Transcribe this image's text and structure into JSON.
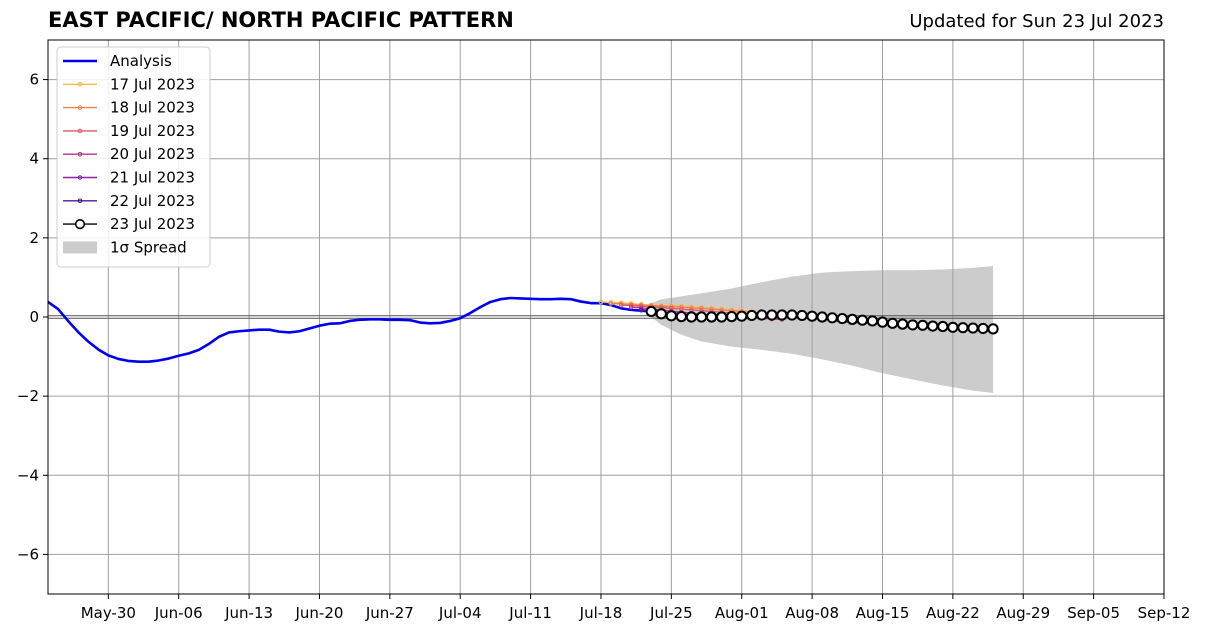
{
  "chart_data": {
    "type": "line",
    "title": "EAST PACIFIC/ NORTH PACIFIC PATTERN",
    "subtitle": "Updated for Sun 23 Jul 2023",
    "xlabel": "",
    "ylabel": "",
    "xlim": [
      "2023-05-24",
      "2023-09-12"
    ],
    "ylim": [
      -7,
      7
    ],
    "x_ticks": [
      "2023-05-30",
      "2023-06-06",
      "2023-06-13",
      "2023-06-20",
      "2023-06-27",
      "2023-07-04",
      "2023-07-11",
      "2023-07-18",
      "2023-07-25",
      "2023-08-01",
      "2023-08-08",
      "2023-08-15",
      "2023-08-22",
      "2023-08-29",
      "2023-09-05",
      "2023-09-12"
    ],
    "x_tick_labels": [
      "May-30",
      "Jun-06",
      "Jun-13",
      "Jun-20",
      "Jun-27",
      "Jul-04",
      "Jul-11",
      "Jul-18",
      "Jul-25",
      "Aug-01",
      "Aug-08",
      "Aug-15",
      "Aug-22",
      "Aug-29",
      "Sep-05",
      "Sep-12"
    ],
    "y_ticks": [
      -6,
      -4,
      -2,
      0,
      2,
      4,
      6
    ],
    "y_tick_labels": [
      "−6",
      "−4",
      "−2",
      "0",
      "2",
      "4",
      "6"
    ],
    "grid": true,
    "legend_position": "top-left",
    "analysis": {
      "name": "Analysis",
      "color": "#0000ee",
      "x": [
        "2023-05-24",
        "2023-05-25",
        "2023-05-26",
        "2023-05-27",
        "2023-05-28",
        "2023-05-29",
        "2023-05-30",
        "2023-05-31",
        "2023-06-01",
        "2023-06-02",
        "2023-06-03",
        "2023-06-04",
        "2023-06-05",
        "2023-06-06",
        "2023-06-07",
        "2023-06-08",
        "2023-06-09",
        "2023-06-10",
        "2023-06-11",
        "2023-06-12",
        "2023-06-13",
        "2023-06-14",
        "2023-06-15",
        "2023-06-16",
        "2023-06-17",
        "2023-06-18",
        "2023-06-19",
        "2023-06-20",
        "2023-06-21",
        "2023-06-22",
        "2023-06-23",
        "2023-06-24",
        "2023-06-25",
        "2023-06-26",
        "2023-06-27",
        "2023-06-28",
        "2023-06-29",
        "2023-06-30",
        "2023-07-01",
        "2023-07-02",
        "2023-07-03",
        "2023-07-04",
        "2023-07-05",
        "2023-07-06",
        "2023-07-07",
        "2023-07-08",
        "2023-07-09",
        "2023-07-10",
        "2023-07-11",
        "2023-07-12",
        "2023-07-13",
        "2023-07-14",
        "2023-07-15",
        "2023-07-16",
        "2023-07-17",
        "2023-07-18",
        "2023-07-19",
        "2023-07-20",
        "2023-07-21",
        "2023-07-22",
        "2023-07-23"
      ],
      "values": [
        0.38,
        0.2,
        -0.1,
        -0.38,
        -0.62,
        -0.82,
        -0.97,
        -1.06,
        -1.11,
        -1.13,
        -1.13,
        -1.1,
        -1.05,
        -0.98,
        -0.92,
        -0.83,
        -0.68,
        -0.5,
        -0.39,
        -0.36,
        -0.34,
        -0.32,
        -0.32,
        -0.37,
        -0.39,
        -0.36,
        -0.29,
        -0.22,
        -0.17,
        -0.16,
        -0.1,
        -0.07,
        -0.06,
        -0.06,
        -0.07,
        -0.07,
        -0.08,
        -0.14,
        -0.16,
        -0.15,
        -0.1,
        -0.03,
        0.1,
        0.25,
        0.38,
        0.45,
        0.48,
        0.47,
        0.46,
        0.45,
        0.45,
        0.46,
        0.45,
        0.39,
        0.35,
        0.35,
        0.3,
        0.22,
        0.18,
        0.16,
        0.14
      ]
    },
    "spread": {
      "name": "1σ Spread",
      "color": "#cccccc",
      "x": [
        "2023-07-23",
        "2023-07-24",
        "2023-07-26",
        "2023-07-28",
        "2023-07-31",
        "2023-08-03",
        "2023-08-06",
        "2023-08-09",
        "2023-08-12",
        "2023-08-15",
        "2023-08-18",
        "2023-08-21",
        "2023-08-24",
        "2023-08-26"
      ],
      "upper": [
        0.35,
        0.45,
        0.52,
        0.6,
        0.72,
        0.88,
        1.02,
        1.12,
        1.16,
        1.18,
        1.18,
        1.2,
        1.24,
        1.29
      ],
      "lower": [
        0.0,
        -0.2,
        -0.45,
        -0.62,
        -0.75,
        -0.83,
        -0.93,
        -1.07,
        -1.23,
        -1.42,
        -1.58,
        -1.73,
        -1.86,
        -1.92
      ]
    },
    "series": [
      {
        "name": "17 Jul 2023",
        "color": "#f9b848",
        "x": [
          "2023-07-18",
          "2023-07-19",
          "2023-07-20",
          "2023-07-21",
          "2023-07-22",
          "2023-07-23",
          "2023-07-24",
          "2023-07-25",
          "2023-07-26",
          "2023-07-27",
          "2023-07-28",
          "2023-07-29",
          "2023-07-30",
          "2023-07-31",
          "2023-08-01",
          "2023-08-02"
        ],
        "values": [
          0.38,
          0.37,
          0.36,
          0.34,
          0.32,
          0.3,
          0.29,
          0.28,
          0.27,
          0.25,
          0.24,
          0.22,
          0.2,
          0.18,
          0.16,
          0.14
        ]
      },
      {
        "name": "18 Jul 2023",
        "color": "#f0824a",
        "x": [
          "2023-07-19",
          "2023-07-20",
          "2023-07-21",
          "2023-07-22",
          "2023-07-23",
          "2023-07-24",
          "2023-07-25",
          "2023-07-26",
          "2023-07-27",
          "2023-07-28",
          "2023-07-29",
          "2023-07-30",
          "2023-07-31",
          "2023-08-01",
          "2023-08-02",
          "2023-08-03"
        ],
        "values": [
          0.34,
          0.33,
          0.31,
          0.3,
          0.29,
          0.27,
          0.26,
          0.25,
          0.23,
          0.22,
          0.2,
          0.18,
          0.16,
          0.14,
          0.12,
          0.1
        ]
      },
      {
        "name": "19 Jul 2023",
        "color": "#dd5a6e",
        "x": [
          "2023-07-20",
          "2023-07-21",
          "2023-07-22",
          "2023-07-23",
          "2023-07-24",
          "2023-07-25",
          "2023-07-26",
          "2023-07-27",
          "2023-07-28",
          "2023-07-29",
          "2023-07-30",
          "2023-07-31",
          "2023-08-01",
          "2023-08-02",
          "2023-08-03",
          "2023-08-04"
        ],
        "values": [
          0.3,
          0.29,
          0.27,
          0.26,
          0.24,
          0.22,
          0.2,
          0.18,
          0.16,
          0.14,
          0.12,
          0.1,
          0.08,
          0.07,
          0.06,
          0.05
        ]
      },
      {
        "name": "20 Jul 2023",
        "color": "#b3358a",
        "x": [
          "2023-07-21",
          "2023-07-22",
          "2023-07-23",
          "2023-07-24",
          "2023-07-25",
          "2023-07-26",
          "2023-07-27",
          "2023-07-28",
          "2023-07-29",
          "2023-07-30",
          "2023-07-31",
          "2023-08-01",
          "2023-08-02",
          "2023-08-03",
          "2023-08-04",
          "2023-08-05"
        ],
        "values": [
          0.25,
          0.23,
          0.21,
          0.18,
          0.15,
          0.12,
          0.1,
          0.07,
          0.05,
          0.03,
          0.01,
          0.0,
          -0.02,
          -0.03,
          -0.05,
          -0.06
        ]
      },
      {
        "name": "21 Jul 2023",
        "color": "#8526a6",
        "x": [
          "2023-07-22",
          "2023-07-23",
          "2023-07-24",
          "2023-07-25",
          "2023-07-26",
          "2023-07-27",
          "2023-07-28",
          "2023-07-29",
          "2023-07-30",
          "2023-07-31",
          "2023-08-01",
          "2023-08-02",
          "2023-08-03",
          "2023-08-04",
          "2023-08-05",
          "2023-08-06",
          "2023-08-07",
          "2023-08-08",
          "2023-08-09",
          "2023-08-10",
          "2023-08-11",
          "2023-08-12",
          "2023-08-13",
          "2023-08-14",
          "2023-08-15"
        ],
        "values": [
          0.19,
          0.17,
          0.14,
          0.11,
          0.08,
          0.05,
          0.03,
          0.01,
          0.0,
          -0.01,
          0.0,
          0.01,
          0.02,
          0.03,
          0.03,
          0.02,
          0.0,
          -0.03,
          -0.06,
          -0.09,
          -0.12,
          -0.14,
          -0.15,
          -0.16,
          -0.17
        ]
      },
      {
        "name": "22 Jul 2023",
        "color": "#4b1a8e",
        "x": [
          "2023-07-22",
          "2023-07-23",
          "2023-07-24",
          "2023-07-25",
          "2023-07-26",
          "2023-07-27",
          "2023-07-28",
          "2023-07-29",
          "2023-07-30",
          "2023-07-31",
          "2023-08-01",
          "2023-08-02",
          "2023-08-03",
          "2023-08-04",
          "2023-08-05",
          "2023-08-06"
        ],
        "values": [
          0.17,
          0.15,
          0.12,
          0.08,
          0.05,
          0.03,
          0.02,
          0.01,
          0.01,
          0.01,
          0.02,
          0.03,
          0.04,
          0.04,
          0.04,
          0.03
        ]
      },
      {
        "name": "23 Jul 2023",
        "color": "#000000",
        "marker": "open-circle",
        "x": [
          "2023-07-23",
          "2023-07-24",
          "2023-07-25",
          "2023-07-26",
          "2023-07-27",
          "2023-07-28",
          "2023-07-29",
          "2023-07-30",
          "2023-07-31",
          "2023-08-01",
          "2023-08-02",
          "2023-08-03",
          "2023-08-04",
          "2023-08-05",
          "2023-08-06",
          "2023-08-07",
          "2023-08-08",
          "2023-08-09",
          "2023-08-10",
          "2023-08-11",
          "2023-08-12",
          "2023-08-13",
          "2023-08-14",
          "2023-08-15",
          "2023-08-16",
          "2023-08-17",
          "2023-08-18",
          "2023-08-19",
          "2023-08-20",
          "2023-08-21",
          "2023-08-22",
          "2023-08-23",
          "2023-08-24",
          "2023-08-25",
          "2023-08-26"
        ],
        "values": [
          0.14,
          0.08,
          0.03,
          0.01,
          0.0,
          0.0,
          0.0,
          0.0,
          0.01,
          0.02,
          0.04,
          0.05,
          0.05,
          0.05,
          0.05,
          0.04,
          0.02,
          0.0,
          -0.02,
          -0.04,
          -0.06,
          -0.08,
          -0.1,
          -0.13,
          -0.16,
          -0.18,
          -0.2,
          -0.21,
          -0.23,
          -0.24,
          -0.26,
          -0.27,
          -0.28,
          -0.29,
          -0.3
        ]
      }
    ]
  }
}
